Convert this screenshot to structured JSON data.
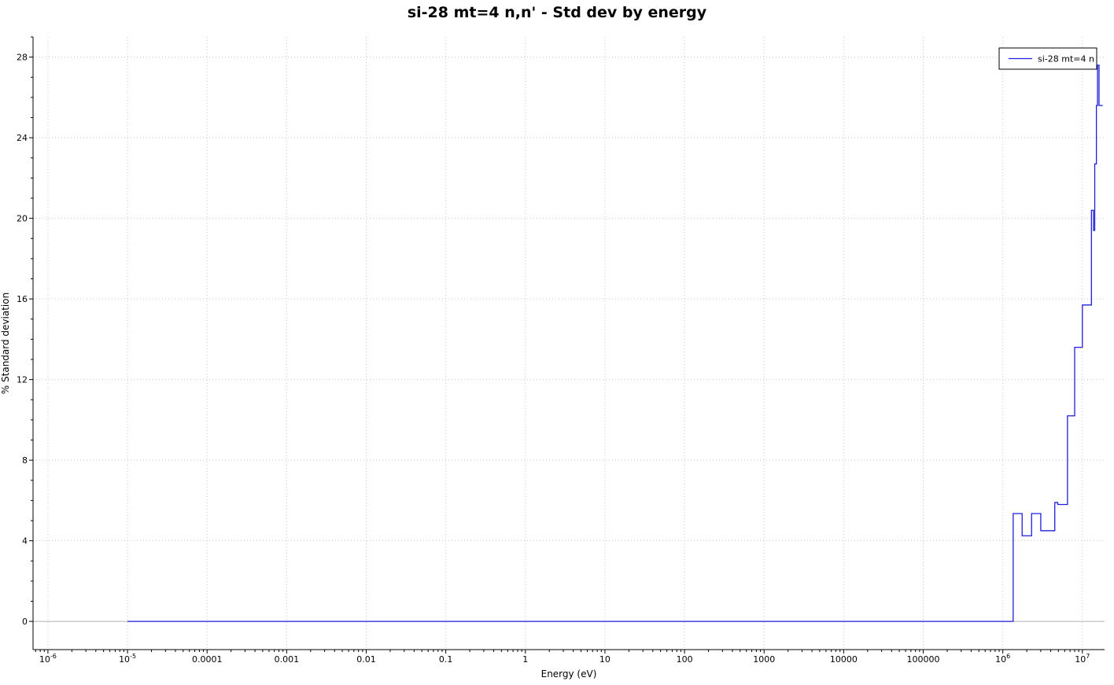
{
  "chart_data": {
    "type": "line",
    "title": "si-28 mt=4 n,n' - Std dev by energy",
    "xlabel": "Energy (eV)",
    "ylabel": "% Standard deviation",
    "x_scale": "log",
    "xlim": [
      6.5e-07,
      19000000.0
    ],
    "ylim": [
      -1.4,
      29.0
    ],
    "grid": true,
    "legend_position": "top-right",
    "x_ticks": [
      {
        "value": 1e-06,
        "base": "10",
        "exp": "-6",
        "label": ""
      },
      {
        "value": 1e-05,
        "base": "10",
        "exp": "-5",
        "label": ""
      },
      {
        "value": 0.0001,
        "label": "0.0001"
      },
      {
        "value": 0.001,
        "label": "0.001"
      },
      {
        "value": 0.01,
        "label": "0.01"
      },
      {
        "value": 0.1,
        "label": "0.1"
      },
      {
        "value": 1,
        "label": "1"
      },
      {
        "value": 10,
        "label": "10"
      },
      {
        "value": 100,
        "label": "100"
      },
      {
        "value": 1000,
        "label": "1000"
      },
      {
        "value": 10000,
        "label": "10000"
      },
      {
        "value": 100000,
        "label": "100000"
      },
      {
        "value": 1000000.0,
        "base": "10",
        "exp": "6",
        "label": ""
      },
      {
        "value": 10000000.0,
        "base": "10",
        "exp": "7",
        "label": ""
      }
    ],
    "y_ticks": [
      0,
      4,
      8,
      12,
      16,
      20,
      24,
      28
    ],
    "series": [
      {
        "name": "si-28 mt=4 n",
        "color": "#1f1fdc",
        "step": true,
        "points": [
          [
            1e-05,
            0
          ],
          [
            1350000.0,
            0
          ],
          [
            1350000.0,
            5.35
          ],
          [
            1750000.0,
            5.35
          ],
          [
            1750000.0,
            4.25
          ],
          [
            2300000.0,
            4.25
          ],
          [
            2300000.0,
            5.35
          ],
          [
            3000000.0,
            5.35
          ],
          [
            3000000.0,
            4.5
          ],
          [
            4500000.0,
            4.5
          ],
          [
            4500000.0,
            5.9
          ],
          [
            4900000.0,
            5.9
          ],
          [
            4900000.0,
            5.8
          ],
          [
            6500000.0,
            5.8
          ],
          [
            6500000.0,
            10.2
          ],
          [
            8000000.0,
            10.2
          ],
          [
            8000000.0,
            13.6
          ],
          [
            10000000.0,
            13.6
          ],
          [
            10000000.0,
            15.7
          ],
          [
            13000000.0,
            15.7
          ],
          [
            13000000.0,
            20.4
          ],
          [
            13800000.0,
            20.4
          ],
          [
            13800000.0,
            19.4
          ],
          [
            14300000.0,
            19.4
          ],
          [
            14300000.0,
            22.7
          ],
          [
            15000000.0,
            22.7
          ],
          [
            15000000.0,
            25.6
          ],
          [
            15500000.0,
            25.6
          ],
          [
            15500000.0,
            27.6
          ],
          [
            16200000.0,
            27.6
          ],
          [
            16200000.0,
            25.6
          ],
          [
            18000000.0,
            25.6
          ]
        ]
      }
    ]
  }
}
